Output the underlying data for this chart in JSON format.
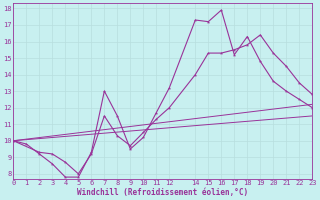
{
  "xlabel": "Windchill (Refroidissement éolien,°C)",
  "xlim": [
    0,
    23
  ],
  "ylim": [
    8,
    18
  ],
  "yticks": [
    8,
    9,
    10,
    11,
    12,
    13,
    14,
    15,
    16,
    17,
    18
  ],
  "xticks": [
    0,
    1,
    2,
    3,
    4,
    5,
    6,
    7,
    8,
    9,
    10,
    11,
    12,
    14,
    15,
    16,
    17,
    18,
    19,
    20,
    21,
    22,
    23
  ],
  "xtick_labels": [
    "0",
    "1",
    "2",
    "3",
    "4",
    "5",
    "6",
    "7",
    "8",
    "9",
    "10",
    "11",
    "12",
    "14",
    "15",
    "16",
    "17",
    "18",
    "19",
    "20",
    "21",
    "22",
    "23"
  ],
  "bg_color": "#c8f0f0",
  "line_color": "#993399",
  "grid_color": "#b8dede",
  "lines": [
    {
      "x": [
        0,
        1,
        2,
        3,
        4,
        5,
        6,
        7,
        8,
        9,
        10,
        11,
        12,
        14,
        15,
        16,
        17,
        18,
        19,
        20,
        21,
        22,
        23
      ],
      "y": [
        10.0,
        9.8,
        9.2,
        8.6,
        7.8,
        7.8,
        9.3,
        13.0,
        11.5,
        9.5,
        10.2,
        11.7,
        13.2,
        17.3,
        17.2,
        17.9,
        15.2,
        16.3,
        14.8,
        13.6,
        13.0,
        12.5,
        12.0
      ],
      "style": "-",
      "marker": "*",
      "lw": 0.8
    },
    {
      "x": [
        0,
        2,
        3,
        4,
        5,
        6,
        7,
        8,
        9,
        10,
        11,
        12,
        14,
        15,
        16,
        17,
        18,
        19,
        20,
        21,
        22,
        23
      ],
      "y": [
        10.0,
        9.3,
        9.2,
        8.7,
        8.0,
        9.2,
        11.5,
        10.3,
        9.7,
        10.5,
        11.3,
        12.0,
        14.0,
        15.3,
        15.3,
        15.5,
        15.8,
        16.4,
        15.3,
        14.5,
        13.5,
        12.8
      ],
      "style": "-",
      "marker": "*",
      "lw": 0.8
    },
    {
      "x": [
        0,
        23
      ],
      "y": [
        10.0,
        12.2
      ],
      "style": "-",
      "marker": null,
      "lw": 0.7
    },
    {
      "x": [
        0,
        23
      ],
      "y": [
        10.0,
        11.5
      ],
      "style": "-",
      "marker": null,
      "lw": 0.7
    }
  ],
  "tick_fontsize": 5,
  "xlabel_fontsize": 5.5,
  "tick_color": "#993399",
  "spine_color": "#993399"
}
